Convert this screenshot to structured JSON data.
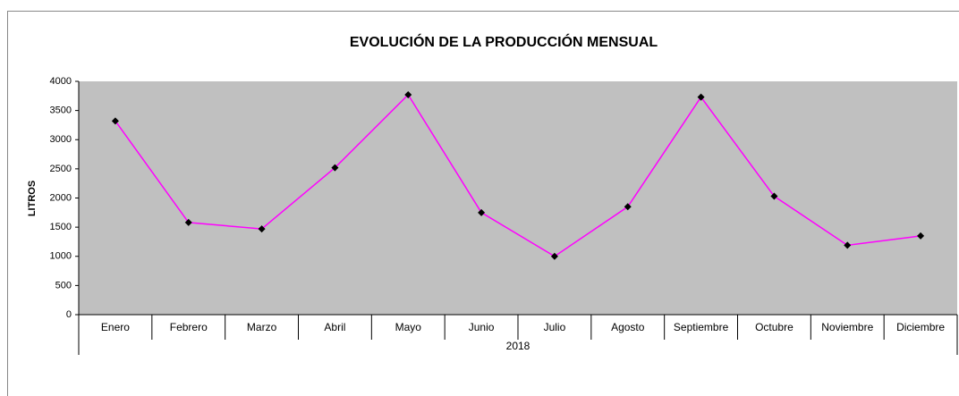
{
  "chart_data": {
    "type": "line",
    "title": "EVOLUCIÓN DE LA PRODUCCIÓN MENSUAL",
    "ylabel": "LITROS",
    "group_label": "2018",
    "categories": [
      "Enero",
      "Febrero",
      "Marzo",
      "Abril",
      "Mayo",
      "Junio",
      "Julio",
      "Agosto",
      "Septiembre",
      "Octubre",
      "Noviembre",
      "Diciembre"
    ],
    "series": [
      {
        "color": "#ff00ff",
        "marker_color": "#000000",
        "values": [
          3320,
          1580,
          1470,
          2520,
          3770,
          1750,
          1000,
          1850,
          3730,
          2030,
          1190,
          1350
        ]
      }
    ],
    "ylim": [
      0,
      4000
    ],
    "yticks": [
      0,
      500,
      1000,
      1500,
      2000,
      2500,
      3000,
      3500,
      4000
    ],
    "plot_background": "#c0c0c0",
    "grid": false
  }
}
